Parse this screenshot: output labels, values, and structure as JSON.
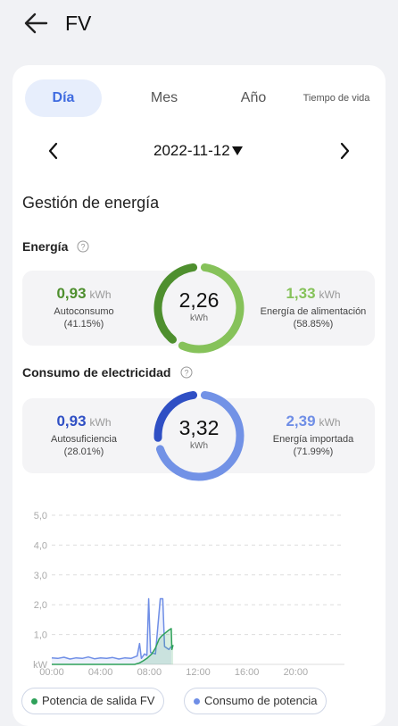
{
  "header": {
    "title": "FV"
  },
  "tabs": [
    {
      "label": "Día",
      "active": true
    },
    {
      "label": "Mes",
      "active": false
    },
    {
      "label": "Año",
      "active": false
    },
    {
      "label": "Tiempo de vida",
      "active": false
    }
  ],
  "date": {
    "value": "2022-11-12"
  },
  "section_title": "Gestión de energía",
  "energia": {
    "title": "Energía",
    "left": {
      "value": "0,93",
      "unit": "kWh",
      "label": "Autoconsumo",
      "pct": "(41.15%)"
    },
    "center": {
      "value": "2,26",
      "unit": "kWh"
    },
    "right": {
      "value": "1,33",
      "unit": "kWh",
      "label": "Energía de alimentación",
      "pct": "(58.85%)"
    },
    "share_left": 0.4115,
    "colors": {
      "left": "#4e8f2e",
      "right": "#86c25a",
      "value_left": "#4e8f2e",
      "value_right": "#86c25a"
    }
  },
  "consumo": {
    "title": "Consumo de electricidad",
    "left": {
      "value": "0,93",
      "unit": "kWh",
      "label": "Autosuficiencia",
      "pct": "(28.01%)"
    },
    "center": {
      "value": "3,32",
      "unit": "kWh"
    },
    "right": {
      "value": "2,39",
      "unit": "kWh",
      "label": "Energía importada",
      "pct": "(71.99%)"
    },
    "share_left": 0.2801,
    "colors": {
      "left": "#2f4fc4",
      "right": "#7292e6",
      "value_left": "#2f4fc4",
      "value_right": "#6f8ee6"
    }
  },
  "legend": [
    {
      "label": "Potencia de salida FV",
      "color": "#2fa15a"
    },
    {
      "label": "Consumo de potencia",
      "color": "#6f8ee6"
    }
  ],
  "chart_data": {
    "type": "area",
    "y_unit": "kW",
    "y_ticks": [
      "0",
      "1,0",
      "2,0",
      "3,0",
      "4,0",
      "5,0"
    ],
    "ylim": [
      0,
      5
    ],
    "x_ticks": [
      "00:00",
      "04:00",
      "08:00",
      "12:00",
      "16:00",
      "20:00"
    ],
    "xlim": [
      0,
      24
    ],
    "grid": true,
    "series": [
      {
        "name": "Consumo de potencia",
        "color": "#6f8ee6",
        "points": [
          [
            0,
            0.22
          ],
          [
            0.5,
            0.2
          ],
          [
            1,
            0.24
          ],
          [
            1.5,
            0.18
          ],
          [
            2,
            0.22
          ],
          [
            2.5,
            0.2
          ],
          [
            3,
            0.25
          ],
          [
            3.5,
            0.19
          ],
          [
            4,
            0.22
          ],
          [
            4.5,
            0.2
          ],
          [
            5,
            0.23
          ],
          [
            5.5,
            0.18
          ],
          [
            6,
            0.22
          ],
          [
            6.5,
            0.2
          ],
          [
            7,
            0.28
          ],
          [
            7.2,
            0.7
          ],
          [
            7.35,
            0.2
          ],
          [
            7.6,
            0.35
          ],
          [
            7.8,
            0.3
          ],
          [
            7.95,
            2.2
          ],
          [
            8.1,
            0.4
          ],
          [
            8.5,
            0.35
          ],
          [
            8.9,
            2.2
          ],
          [
            9.1,
            2.2
          ],
          [
            9.25,
            0.6
          ],
          [
            9.6,
            0.5
          ],
          [
            9.8,
            0.6
          ]
        ]
      },
      {
        "name": "Potencia de salida FV",
        "color": "#2fa15a",
        "points": [
          [
            0,
            0
          ],
          [
            6.8,
            0
          ],
          [
            7.2,
            0.05
          ],
          [
            7.5,
            0.12
          ],
          [
            7.8,
            0.2
          ],
          [
            8.2,
            0.35
          ],
          [
            8.5,
            0.55
          ],
          [
            8.8,
            0.85
          ],
          [
            9,
            0.95
          ],
          [
            9.3,
            1.05
          ],
          [
            9.6,
            1.15
          ],
          [
            9.8,
            1.2
          ],
          [
            9.85,
            0.5
          ],
          [
            9.95,
            0.65
          ]
        ]
      }
    ]
  }
}
